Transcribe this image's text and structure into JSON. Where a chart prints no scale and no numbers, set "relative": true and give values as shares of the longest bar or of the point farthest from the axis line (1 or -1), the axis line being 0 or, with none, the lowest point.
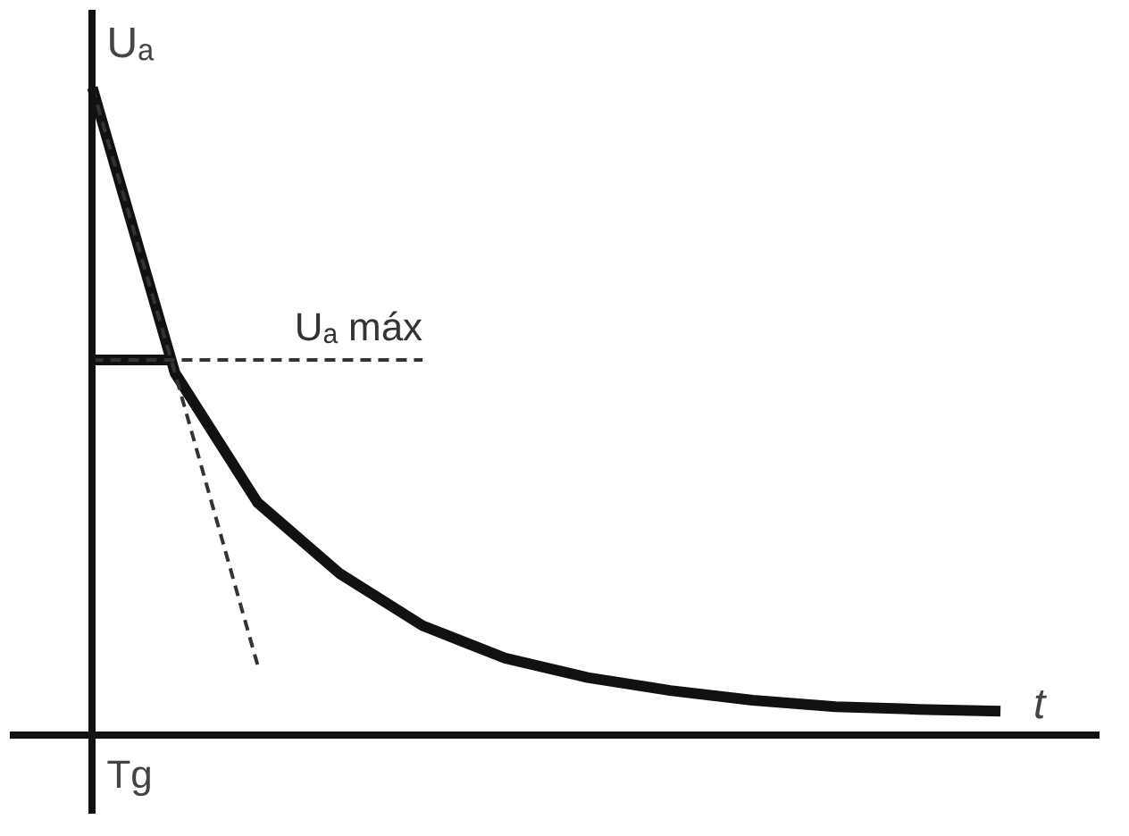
{
  "chart_data": {
    "type": "line",
    "relative": true,
    "xlabel": "t",
    "ylabel": "Uₐ",
    "categories": [
      null,
      null,
      null,
      null,
      null,
      null,
      null,
      null,
      null,
      null,
      null,
      null
    ],
    "series": [
      {
        "color": "#111111",
        "values": [
          1,
          0.56,
          0.36,
          0.25,
          0.17,
          0.12,
          0.09,
          0.07,
          0.055,
          0.045,
          0.041,
          0.038
        ]
      },
      {
        "color": "#111111",
        "values": [
          0.58,
          0.58,
          null,
          null,
          null,
          null,
          null,
          null,
          null,
          null,
          null,
          null
        ]
      },
      {
        "color": "#333333",
        "line_style": "dashed",
        "values": [
          1,
          0.56,
          0.11,
          null,
          null,
          null,
          null,
          null,
          null,
          null,
          null,
          null
        ]
      },
      {
        "name": "Uₐ máx",
        "color": "#333333",
        "line_style": "dashed",
        "values": [
          0.58,
          0.58,
          0.58,
          0.58,
          0.58,
          null,
          null,
          null,
          null,
          null,
          null,
          null
        ]
      }
    ],
    "annotations": [
      "Tg"
    ]
  }
}
